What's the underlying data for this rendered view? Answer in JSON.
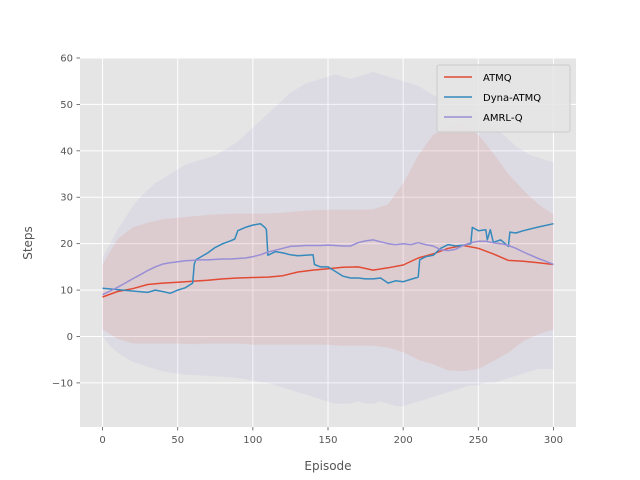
{
  "chart_data": {
    "type": "line",
    "xlabel": "Episode",
    "ylabel": "Steps",
    "xlim": [
      -15,
      315
    ],
    "ylim": [
      -19.5,
      60
    ],
    "xticks": [
      0,
      50,
      100,
      150,
      200,
      250,
      300
    ],
    "yticks": [
      -10,
      0,
      10,
      20,
      30,
      40,
      50,
      60
    ],
    "grid": true,
    "legend_position": "top-right",
    "series": [
      {
        "name": "ATMQ",
        "color": "#e24a33",
        "x": [
          0,
          10,
          20,
          30,
          40,
          50,
          60,
          70,
          80,
          90,
          100,
          110,
          120,
          130,
          140,
          150,
          160,
          170,
          180,
          190,
          200,
          210,
          220,
          230,
          240,
          250,
          260,
          270,
          280,
          290,
          300
        ],
        "y": [
          8.5,
          9.7,
          10.3,
          11.2,
          11.5,
          11.7,
          11.9,
          12.1,
          12.4,
          12.6,
          12.7,
          12.8,
          13.1,
          13.9,
          14.3,
          14.6,
          14.9,
          15.0,
          14.3,
          14.8,
          15.4,
          16.9,
          17.8,
          19.0,
          19.6,
          19.0,
          17.8,
          16.4,
          16.2,
          15.9,
          15.5
        ],
        "band_lower": [
          1.5,
          -0.5,
          -1.5,
          -1.5,
          -1.5,
          -1.5,
          -1.7,
          -1.5,
          -1.5,
          -1.5,
          -1.8,
          -1.8,
          -1.8,
          -1.8,
          -1.8,
          -1.8,
          -2.0,
          -2.0,
          -2.0,
          -2.4,
          -3.4,
          -5.0,
          -6.0,
          -7.3,
          -7.5,
          -7.0,
          -5.3,
          -3.5,
          -1.0,
          0.5,
          1.5
        ],
        "band_upper": [
          15.5,
          21.0,
          23.5,
          24.5,
          25.3,
          25.6,
          25.9,
          26.2,
          26.4,
          26.5,
          26.5,
          26.5,
          26.7,
          27.0,
          27.2,
          27.3,
          27.3,
          27.3,
          27.4,
          28.5,
          33.0,
          39.0,
          43.5,
          45.0,
          46.0,
          43.5,
          39.5,
          35.0,
          31.5,
          28.5,
          26.3
        ]
      },
      {
        "name": "Dyna-ATMQ",
        "color": "#348abd",
        "x": [
          0,
          10,
          20,
          30,
          35,
          40,
          45,
          50,
          55,
          60,
          61,
          62,
          70,
          75,
          80,
          85,
          88,
          90,
          95,
          100,
          105,
          108,
          109,
          110,
          115,
          120,
          125,
          130,
          135,
          140,
          141,
          145,
          150,
          155,
          160,
          165,
          170,
          175,
          180,
          185,
          190,
          195,
          200,
          205,
          210,
          211,
          215,
          220,
          225,
          230,
          235,
          240,
          245,
          246,
          250,
          255,
          256,
          258,
          260,
          265,
          270,
          271,
          275,
          280,
          290,
          300
        ],
        "y": [
          10.4,
          10.1,
          9.8,
          9.5,
          10.0,
          9.7,
          9.3,
          10.0,
          10.5,
          11.5,
          15.5,
          16.5,
          18.0,
          19.2,
          20.0,
          20.6,
          21.0,
          22.8,
          23.5,
          24.0,
          24.3,
          23.5,
          23.0,
          17.5,
          18.3,
          18.0,
          17.6,
          17.4,
          17.5,
          17.6,
          15.5,
          15.0,
          15.0,
          14.0,
          13.0,
          12.6,
          12.6,
          12.4,
          12.4,
          12.6,
          11.5,
          12.0,
          11.8,
          12.3,
          12.8,
          16.5,
          17.2,
          17.5,
          19.0,
          19.8,
          19.5,
          19.7,
          20.0,
          23.5,
          22.8,
          23.0,
          20.8,
          23.0,
          20.3,
          20.8,
          19.4,
          22.5,
          22.3,
          22.8,
          23.6,
          24.3
        ]
      },
      {
        "name": "AMRL-Q",
        "color": "#988ed5",
        "x": [
          0,
          5,
          10,
          15,
          20,
          25,
          30,
          35,
          40,
          45,
          50,
          55,
          60,
          65,
          70,
          75,
          80,
          85,
          90,
          95,
          100,
          105,
          110,
          115,
          120,
          125,
          130,
          135,
          140,
          145,
          150,
          155,
          160,
          165,
          170,
          175,
          180,
          185,
          190,
          195,
          200,
          205,
          210,
          215,
          220,
          225,
          230,
          235,
          240,
          245,
          250,
          255,
          260,
          265,
          270,
          275,
          280,
          285,
          290,
          295,
          300
        ],
        "y": [
          9.0,
          9.8,
          10.6,
          11.5,
          12.4,
          13.3,
          14.2,
          15.0,
          15.6,
          15.9,
          16.1,
          16.3,
          16.4,
          16.5,
          16.5,
          16.6,
          16.7,
          16.7,
          16.8,
          16.9,
          17.2,
          17.6,
          18.2,
          18.6,
          19.0,
          19.4,
          19.5,
          19.6,
          19.6,
          19.6,
          19.7,
          19.6,
          19.5,
          19.5,
          20.2,
          20.6,
          20.8,
          20.4,
          20.0,
          19.8,
          20.0,
          19.8,
          20.2,
          19.8,
          19.5,
          18.7,
          18.5,
          18.8,
          19.6,
          20.2,
          20.5,
          20.5,
          20.2,
          20.0,
          19.6,
          19.0,
          18.2,
          17.5,
          16.8,
          16.2,
          15.5
        ],
        "band_lower": [
          0.0,
          -2.0,
          -3.5,
          -4.5,
          -5.5,
          -6.0,
          -6.5,
          -7.0,
          -7.5,
          -7.8,
          -8.0,
          -8.2,
          -8.3,
          -8.4,
          -8.5,
          -8.6,
          -8.7,
          -8.8,
          -9.0,
          -9.2,
          -9.5,
          -9.8,
          -10.0,
          -10.5,
          -11.0,
          -11.5,
          -12.0,
          -12.5,
          -13.0,
          -13.5,
          -14.0,
          -14.5,
          -14.5,
          -14.5,
          -14.0,
          -14.5,
          -14.5,
          -14.0,
          -14.5,
          -15.0,
          -15.0,
          -14.5,
          -14.0,
          -13.5,
          -13.0,
          -12.5,
          -12.0,
          -11.5,
          -11.0,
          -10.5,
          -10.5,
          -10.0,
          -10.0,
          -9.5,
          -9.0,
          -8.5,
          -8.0,
          -7.5,
          -7.0,
          -7.0,
          -7.0
        ],
        "band_upper": [
          17.0,
          20.0,
          23.0,
          25.5,
          28.0,
          30.0,
          31.5,
          33.0,
          34.0,
          35.0,
          36.0,
          37.0,
          37.5,
          38.0,
          38.5,
          39.0,
          40.0,
          41.0,
          42.0,
          43.5,
          45.0,
          46.5,
          48.0,
          49.5,
          51.0,
          52.5,
          53.5,
          54.5,
          55.0,
          55.5,
          56.0,
          56.5,
          56.0,
          55.5,
          56.0,
          56.5,
          57.0,
          56.5,
          56.0,
          55.5,
          55.0,
          54.5,
          54.0,
          53.0,
          52.0,
          51.5,
          51.0,
          50.0,
          49.5,
          49.0,
          48.0,
          47.0,
          45.5,
          44.0,
          42.5,
          41.0,
          40.0,
          39.0,
          38.5,
          38.0,
          37.5
        ]
      }
    ]
  }
}
